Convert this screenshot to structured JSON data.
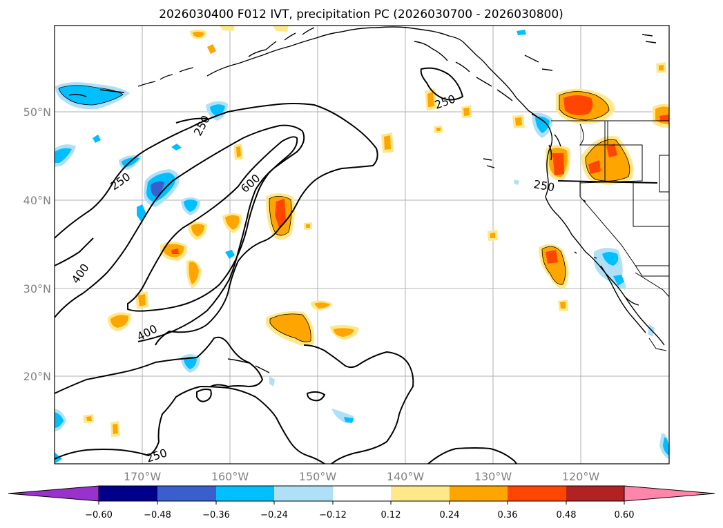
{
  "title": "2026030400 F012 IVT, precipitation PC (2026030700 - 2026030800)",
  "latitude_ticks": [
    "50°N",
    "40°N",
    "30°N",
    "20°N"
  ],
  "longitude_ticks": [
    "170°W",
    "160°W",
    "150°W",
    "140°W",
    "130°W",
    "120°W"
  ],
  "ivt_contour_labels": [
    "250",
    "250",
    "600",
    "400",
    "400",
    "250",
    "250",
    "250"
  ],
  "colorbar": {
    "tick_labels": [
      "−0.60",
      "−0.48",
      "−0.36",
      "−0.24",
      "−0.12",
      "0.12",
      "0.24",
      "0.36",
      "0.48",
      "0.60"
    ],
    "colors": [
      "#9932cc",
      "#00008b",
      "#3a5fcd",
      "#00bfff",
      "#afe0f8",
      "#ffffff",
      "#ffe88a",
      "#ffa500",
      "#ff4500",
      "#b22222",
      "#ff85aa"
    ]
  },
  "precip_colors": {
    "neg_light": "#afe0f8",
    "neg_mid": "#00bfff",
    "neg_strong": "#3a5fcd",
    "pos_light": "#ffe88a",
    "pos_mid": "#ffa500",
    "pos_strong": "#ff4500"
  }
}
